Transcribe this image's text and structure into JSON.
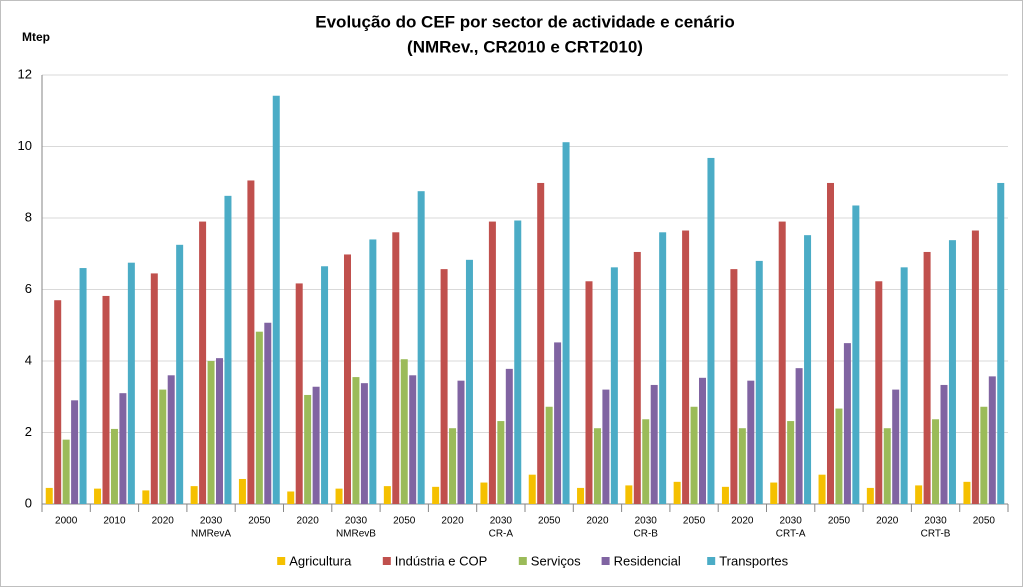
{
  "chart_data": {
    "type": "bar",
    "title": "Evolução do CEF por sector de actividade e cenário",
    "subtitle": "(NMRev., CR2010 e CRT2010)",
    "y_label": "Mtep",
    "categories": [
      "2000",
      "2010",
      "2020",
      "2030",
      "2050",
      "2020",
      "2030",
      "2050",
      "2020",
      "2030",
      "2050",
      "2020",
      "2030",
      "2050",
      "2020",
      "2030",
      "2050",
      "2020",
      "2030",
      "2050"
    ],
    "category_groups": [
      null,
      null,
      null,
      "NMRevA",
      null,
      null,
      "NMRevB",
      null,
      null,
      "CR-A",
      null,
      null,
      "CR-B",
      null,
      null,
      "CRT-A",
      null,
      null,
      "CRT-B",
      null
    ],
    "series": [
      {
        "name": "Agricultura",
        "color": "#f5c000",
        "values": [
          0.45,
          0.43,
          0.38,
          0.5,
          0.7,
          0.35,
          0.43,
          0.5,
          0.48,
          0.6,
          0.82,
          0.45,
          0.52,
          0.62,
          0.48,
          0.6,
          0.82,
          0.45,
          0.52,
          0.62
        ]
      },
      {
        "name": "Indústria e COP",
        "color": "#c0504d",
        "values": [
          5.7,
          5.82,
          6.45,
          7.9,
          9.05,
          6.17,
          6.98,
          7.6,
          6.57,
          7.9,
          8.98,
          6.23,
          7.05,
          7.65,
          6.57,
          7.9,
          8.98,
          6.23,
          7.05,
          7.65
        ]
      },
      {
        "name": "Serviços",
        "color": "#9bbb59",
        "values": [
          1.8,
          2.1,
          3.2,
          4.0,
          4.82,
          3.05,
          3.55,
          4.05,
          2.12,
          2.32,
          2.72,
          2.12,
          2.37,
          2.72,
          2.12,
          2.32,
          2.67,
          2.12,
          2.37,
          2.72
        ]
      },
      {
        "name": "Residencial",
        "color": "#8064a2",
        "values": [
          2.9,
          3.1,
          3.6,
          4.08,
          5.07,
          3.28,
          3.38,
          3.6,
          3.45,
          3.78,
          4.52,
          3.2,
          3.33,
          3.53,
          3.45,
          3.8,
          4.5,
          3.2,
          3.33,
          3.57
        ]
      },
      {
        "name": "Transportes",
        "color": "#4bacc6",
        "values": [
          6.6,
          6.75,
          7.25,
          8.62,
          11.42,
          6.65,
          7.4,
          8.75,
          6.83,
          7.93,
          10.12,
          6.62,
          7.6,
          9.68,
          6.8,
          7.52,
          8.35,
          6.62,
          7.38,
          8.98
        ]
      }
    ],
    "ylim": [
      0,
      12
    ],
    "yticks": [
      0,
      2,
      4,
      6,
      8,
      10,
      12
    ],
    "grid": true,
    "legend": "bottom"
  }
}
